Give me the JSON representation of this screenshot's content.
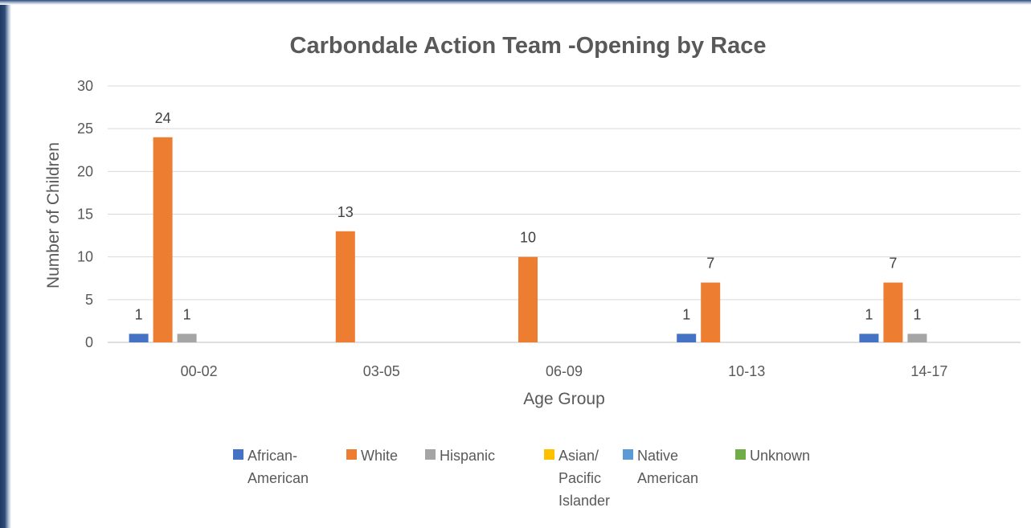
{
  "chart_data": {
    "type": "bar",
    "title": "Carbondale Action Team -Opening by Race",
    "xlabel": "Age Group",
    "ylabel": "Number of Children",
    "ylim": [
      0,
      30
    ],
    "yticks": [
      0,
      5,
      10,
      15,
      20,
      25,
      30
    ],
    "grid": true,
    "legend_position": "bottom",
    "categories": [
      "00-02",
      "03-05",
      "06-09",
      "10-13",
      "14-17"
    ],
    "series": [
      {
        "name": "African-American",
        "legend_lines": [
          "African-",
          "American"
        ],
        "color": "#4472c4",
        "values": [
          1,
          0,
          0,
          1,
          1
        ]
      },
      {
        "name": "White",
        "legend_lines": [
          "White"
        ],
        "color": "#ed7d31",
        "values": [
          24,
          13,
          10,
          7,
          7
        ]
      },
      {
        "name": "Hispanic",
        "legend_lines": [
          "Hispanic"
        ],
        "color": "#a5a5a5",
        "values": [
          1,
          0,
          0,
          0,
          1
        ]
      },
      {
        "name": "Asian/ Pacific Islander",
        "legend_lines": [
          "Asian/",
          "Pacific",
          "Islander"
        ],
        "color": "#ffc000",
        "values": [
          0,
          0,
          0,
          0,
          0
        ]
      },
      {
        "name": "Native American",
        "legend_lines": [
          "Native",
          "American"
        ],
        "color": "#5b9bd5",
        "values": [
          0,
          0,
          0,
          0,
          0
        ]
      },
      {
        "name": "Unknown",
        "legend_lines": [
          "Unknown"
        ],
        "color": "#70ad47",
        "values": [
          0,
          0,
          0,
          0,
          0
        ]
      }
    ]
  }
}
